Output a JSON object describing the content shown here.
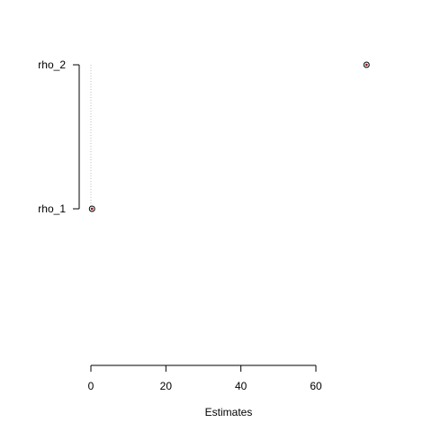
{
  "chart_data": {
    "type": "scatter",
    "title": "",
    "xlabel": "Estimates",
    "ylabel": "",
    "categories": [
      "rho_1",
      "rho_2"
    ],
    "points": [
      {
        "label": "rho_1",
        "value": 0.3
      },
      {
        "label": "rho_2",
        "value": 73.5
      }
    ],
    "x_ticks": [
      0,
      20,
      40,
      60
    ],
    "xlim": [
      0,
      60
    ],
    "grid": false,
    "legend": "none",
    "point_color": "#8b1a1a",
    "guide_color": "#bebebe"
  }
}
